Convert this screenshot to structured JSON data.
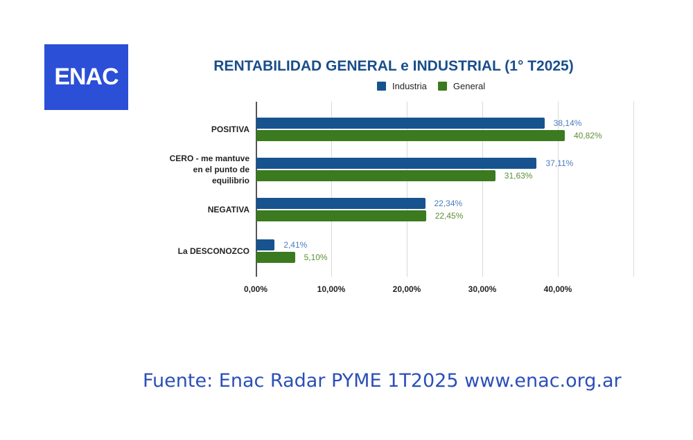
{
  "logo": {
    "text": "ENAC"
  },
  "chart_data": {
    "type": "bar",
    "orientation": "horizontal",
    "title": "RENTABILIDAD GENERAL e INDUSTRIAL (1° T2025)",
    "categories": [
      "POSITIVA",
      "CERO - me mantuve en el punto de equilibrio",
      "NEGATIVA",
      "La DESCONOZCO"
    ],
    "series": [
      {
        "name": "Industria",
        "color": "#17538f",
        "values": [
          38.14,
          37.11,
          22.34,
          2.41
        ],
        "labels": [
          "38,14%",
          "37,11%",
          "22,34%",
          "2,41%"
        ]
      },
      {
        "name": "General",
        "color": "#3b7a1f",
        "values": [
          40.82,
          31.63,
          22.45,
          5.1
        ],
        "labels": [
          "40,82%",
          "31,63%",
          "22,45%",
          "5,10%"
        ]
      }
    ],
    "xlabel": "",
    "ylabel": "",
    "xlim": [
      0,
      50
    ],
    "x_ticks": [
      "0,00%",
      "10,00%",
      "20,00%",
      "30,00%",
      "40,00%"
    ],
    "grid": true,
    "legend_position": "top"
  },
  "category_lines": [
    [
      "POSITIVA"
    ],
    [
      "CERO - me mantuve",
      "en el punto de",
      "equilibrio"
    ],
    [
      "NEGATIVA"
    ],
    [
      "La DESCONOZCO"
    ]
  ],
  "footer": {
    "text": "Fuente: Enac Radar PYME 1T2025  www.enac.org.ar"
  }
}
